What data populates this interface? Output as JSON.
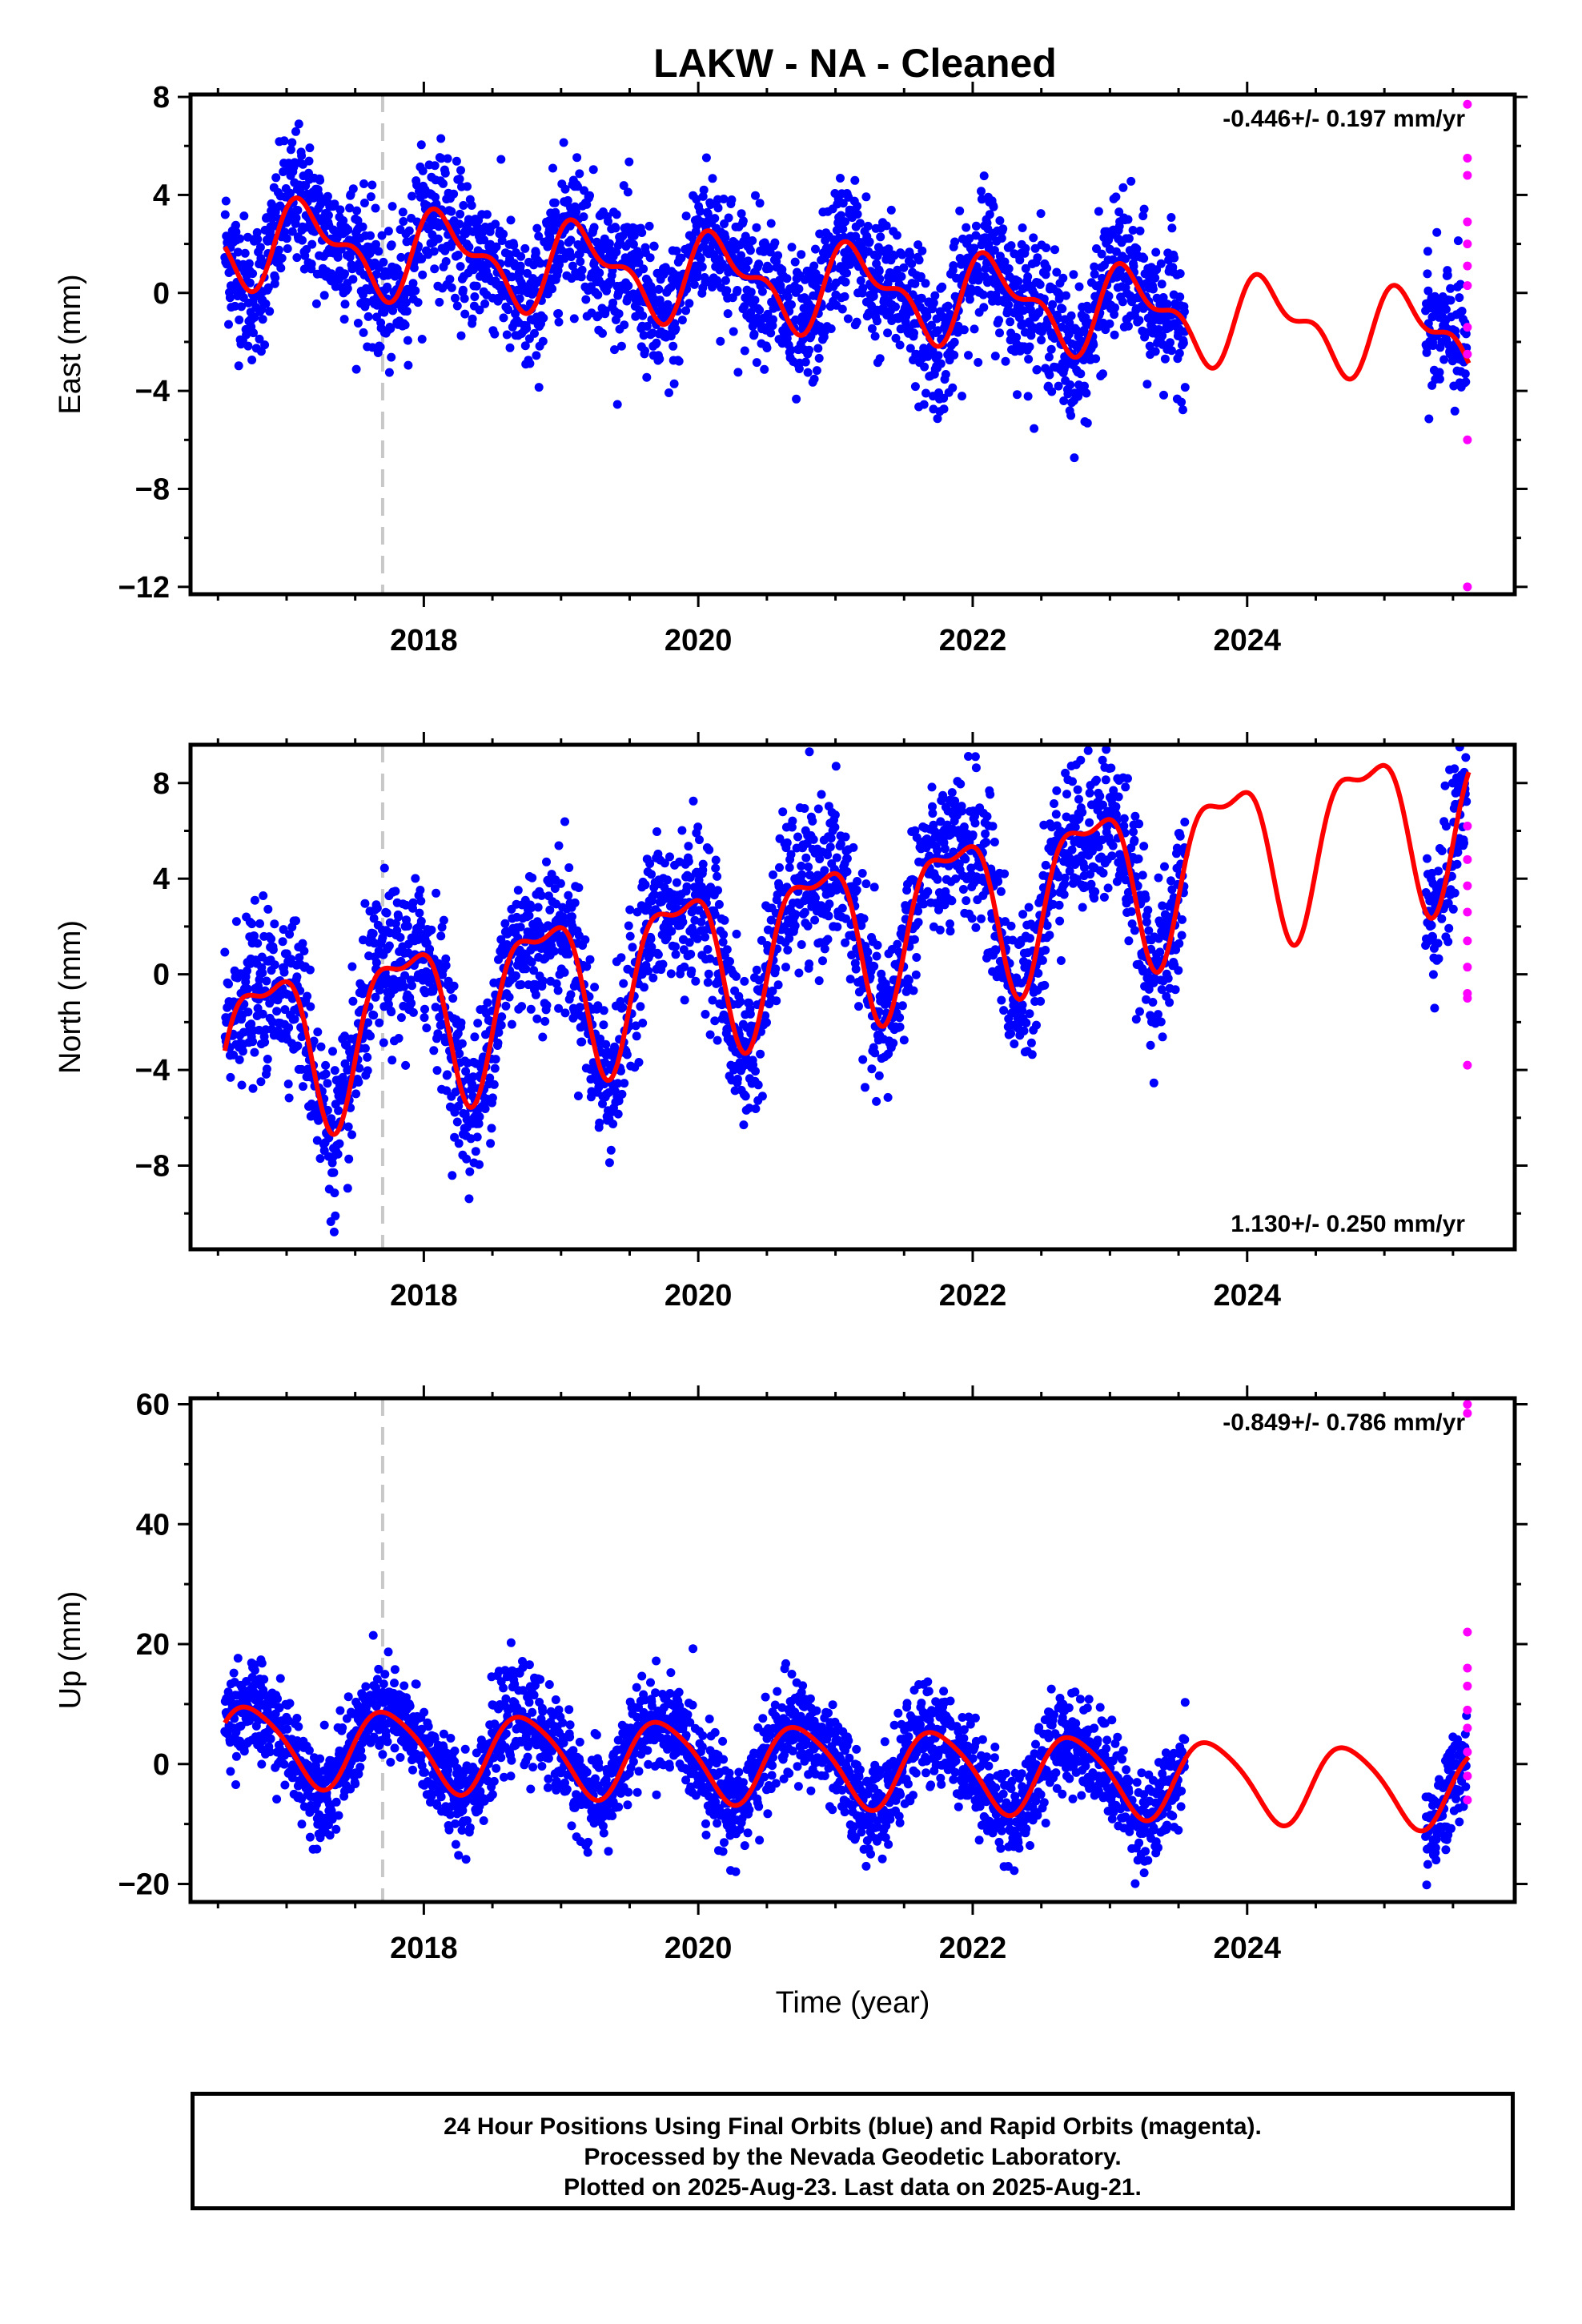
{
  "title": "LAKW  - NA - Cleaned",
  "colors": {
    "final": "#0000ff",
    "rapid": "#ff00ff",
    "model": "#ff0000",
    "event": "#c8c8c8"
  },
  "chart_data": [
    {
      "type": "scatter",
      "ylabel": "East (mm)",
      "xlabel": "",
      "xlim": [
        2016.3,
        2025.95
      ],
      "ylim": [
        -12.3,
        8.1
      ],
      "yticks": [
        -12,
        -8,
        -4,
        0,
        4,
        8
      ],
      "xticks": [
        2018,
        2020,
        2022,
        2024
      ],
      "rate": "-0.446+/- 0.197 mm/yr",
      "rate_position": "top-right",
      "event_line_x": 2017.7,
      "final_range": [
        2016.55,
        2023.55
      ],
      "final_gap_resume": [
        2025.3,
        2025.6
      ],
      "trend": {
        "slope": -0.446,
        "intercept": 2.2,
        "amp1": 1.5,
        "phase1": 0.5,
        "amp2": 0.8,
        "phase2": 1.2,
        "noise": 1.4
      },
      "rapid_values": [
        7.7,
        5.5,
        4.8,
        2.9,
        2.0,
        1.1,
        0.3,
        -1.4,
        -2.5,
        -6.0,
        -12.0
      ]
    },
    {
      "type": "scatter",
      "ylabel": "North (mm)",
      "xlabel": "",
      "xlim": [
        2016.3,
        2025.95
      ],
      "ylim": [
        -11.5,
        9.6
      ],
      "yticks": [
        -8,
        -4,
        0,
        4,
        8
      ],
      "xticks": [
        2018,
        2020,
        2022,
        2024
      ],
      "rate": "1.130+/- 0.250 mm/yr",
      "rate_position": "bottom-right",
      "event_line_x": 2017.7,
      "final_range": [
        2016.55,
        2023.55
      ],
      "final_gap_resume": [
        2025.3,
        2025.6
      ],
      "trend": {
        "slope": 1.13,
        "intercept": -3.2,
        "amp1": 3.2,
        "phase1": 2.5,
        "amp2": 1.2,
        "phase2": 0.4,
        "noise": 1.6
      },
      "rapid_values": [
        6.2,
        4.8,
        3.7,
        2.6,
        1.4,
        0.3,
        -0.8,
        -1.0,
        -3.8
      ]
    },
    {
      "type": "scatter",
      "ylabel": "Up (mm)",
      "xlabel": "Time (year)",
      "xlim": [
        2016.3,
        2025.95
      ],
      "ylim": [
        -23,
        61
      ],
      "yticks": [
        -20,
        0,
        20,
        40,
        60
      ],
      "xticks": [
        2018,
        2020,
        2022,
        2024
      ],
      "rate": "-0.849+/- 0.786 mm/yr",
      "rate_position": "top-right",
      "event_line_x": 2017.7,
      "final_range": [
        2016.55,
        2023.55
      ],
      "final_gap_resume": [
        2025.3,
        2025.6
      ],
      "trend": {
        "slope": -0.849,
        "intercept": 3.5,
        "amp1": 6.5,
        "phase1": 3.2,
        "amp2": 1.0,
        "phase2": 0.8,
        "noise": 4.0
      },
      "rapid_values": [
        60,
        58.5,
        22,
        16,
        13,
        9,
        6,
        2,
        -2,
        -6
      ]
    }
  ],
  "caption": [
    "24 Hour Positions Using Final Orbits (blue) and Rapid Orbits (magenta).",
    "Processed by the Nevada Geodetic Laboratory.",
    "Plotted on 2025-Aug-23. Last data on 2025-Aug-21."
  ]
}
